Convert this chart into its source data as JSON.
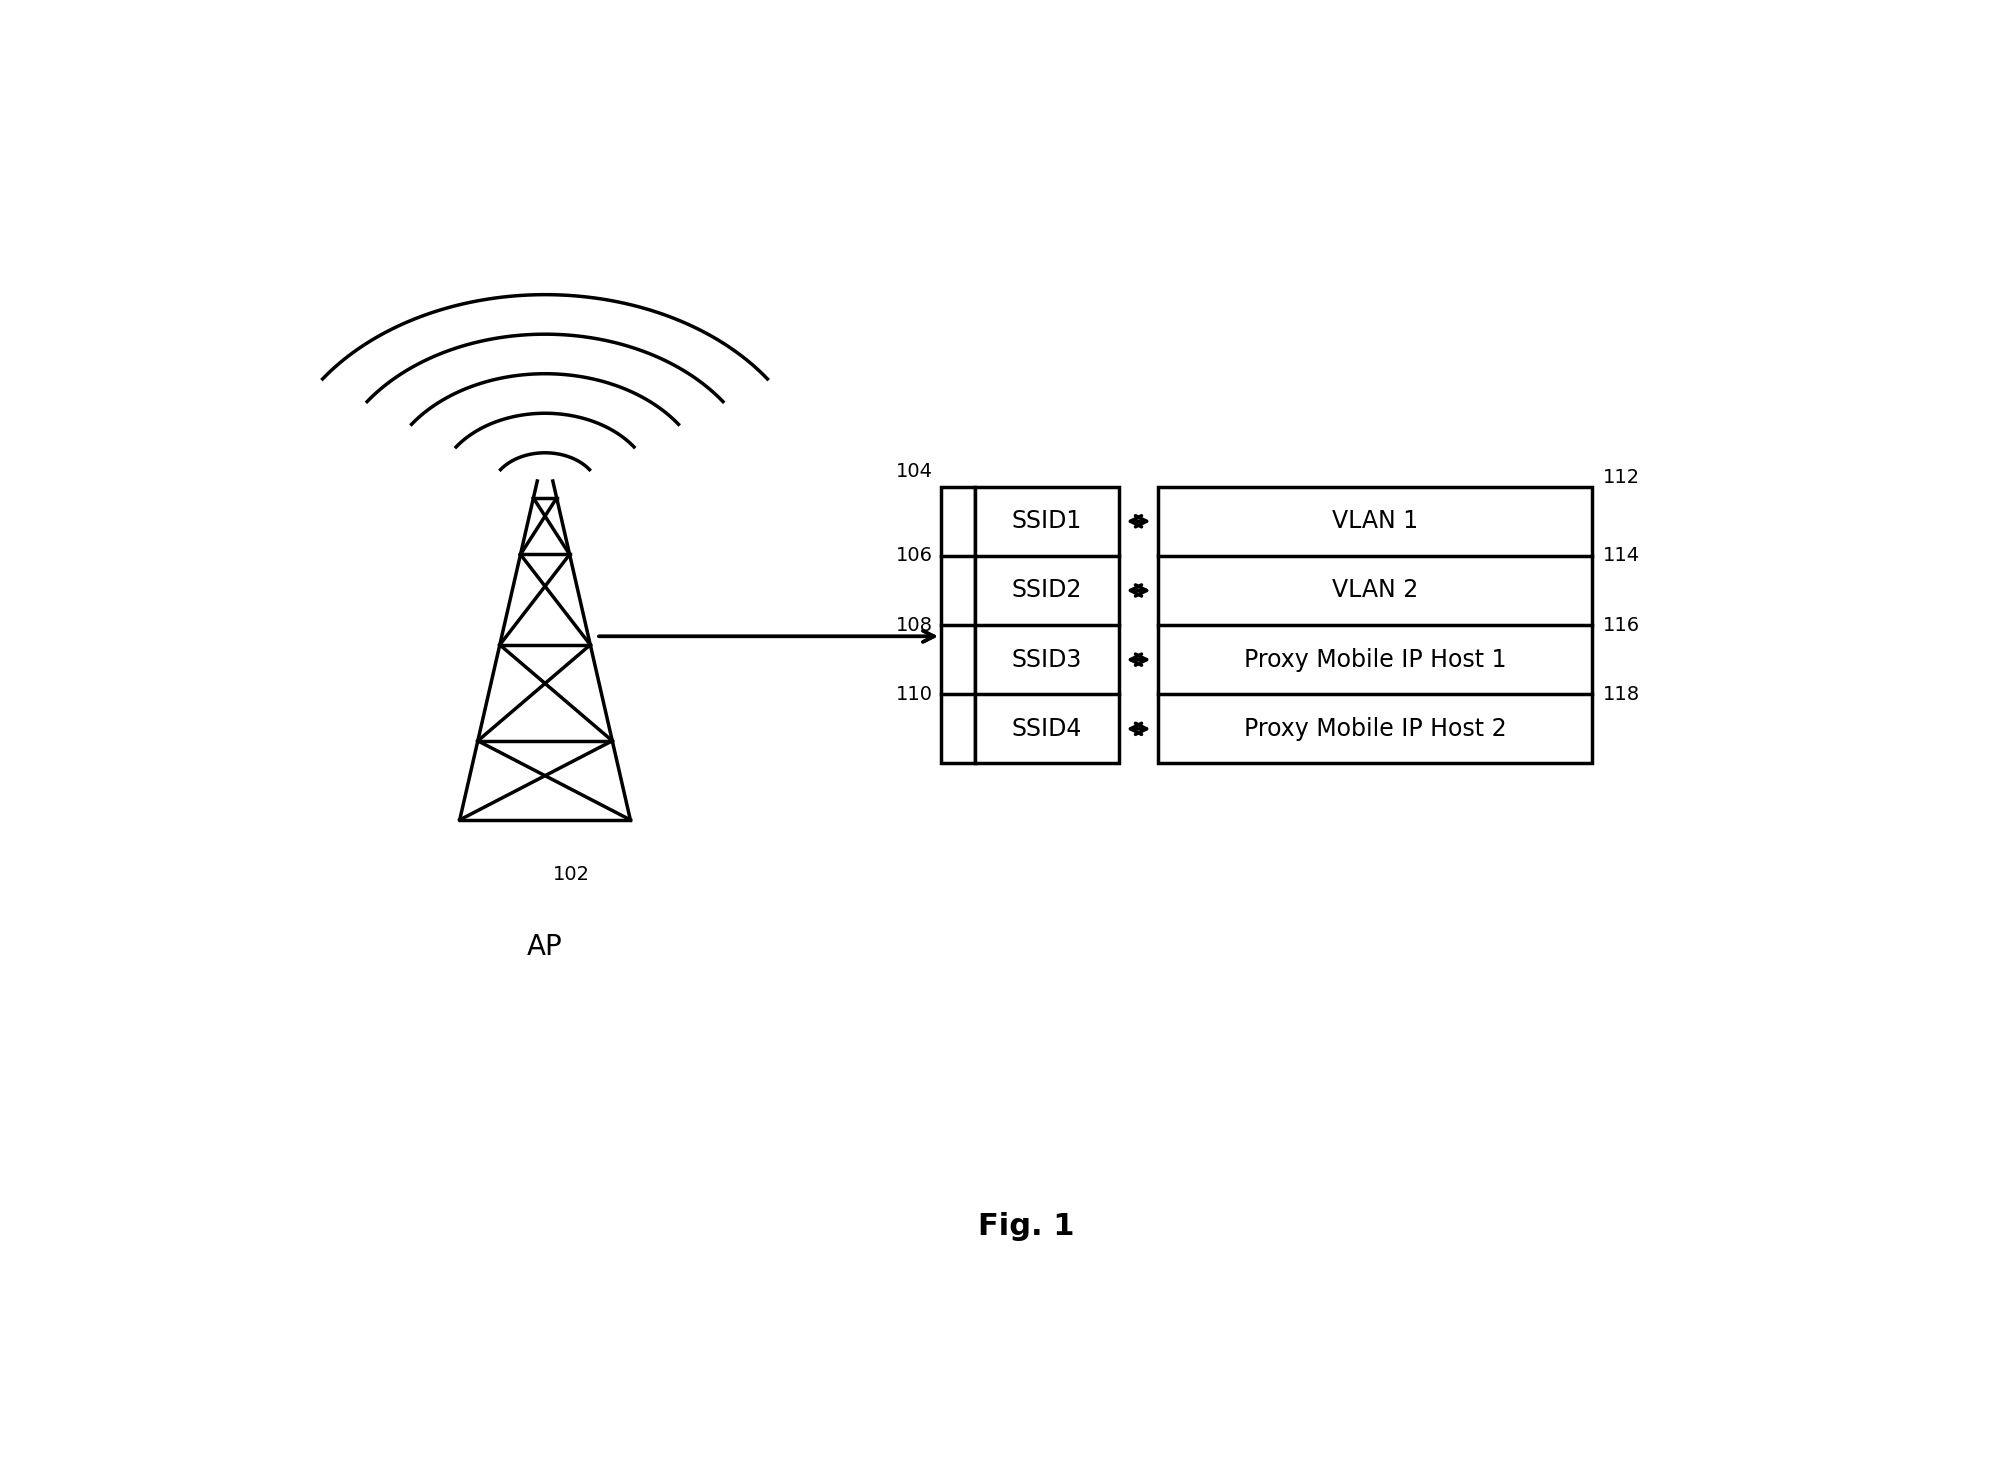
{
  "fig_width": 20.02,
  "fig_height": 14.67,
  "bg_color": "#ffffff",
  "title": "Fig. 1",
  "title_fontsize": 22,
  "title_fontstyle": "bold",
  "ap_label": "AP",
  "ap_num_label": "102",
  "ssid_rows": [
    "SSID1",
    "SSID2",
    "SSID3",
    "SSID4"
  ],
  "vlan_rows": [
    "VLAN 1",
    "VLAN 2",
    "Proxy Mobile IP Host 1",
    "Proxy Mobile IP Host 2"
  ],
  "left_labels": [
    "104",
    "106",
    "108",
    "110"
  ],
  "right_labels": [
    "112",
    "114",
    "116",
    "118"
  ],
  "font_size_box": 17,
  "font_size_num": 14,
  "font_size_ap": 20,
  "line_color": "#000000",
  "line_width": 2.5
}
